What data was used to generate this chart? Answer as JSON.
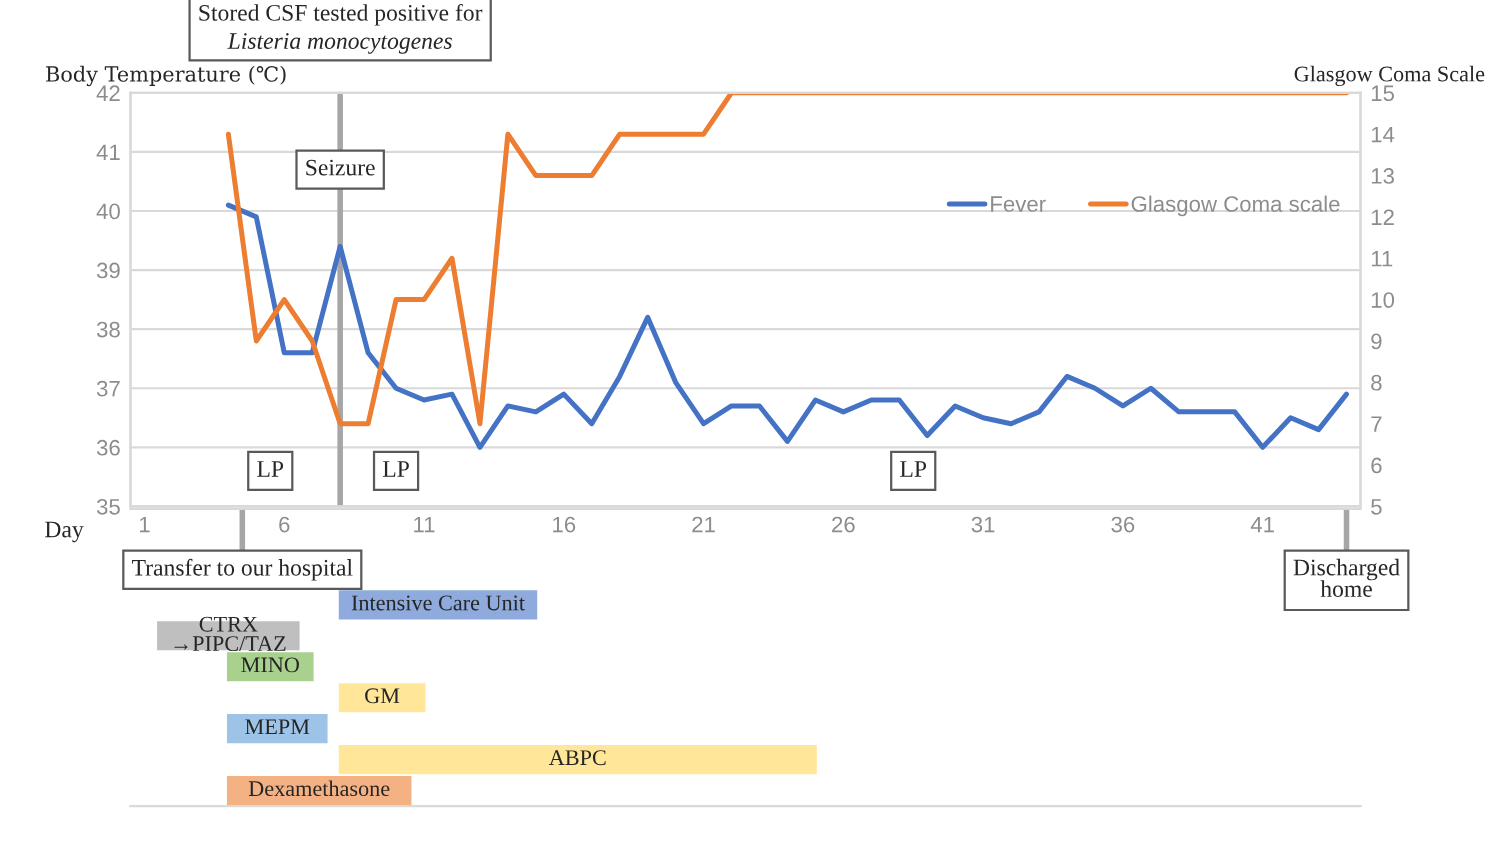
{
  "chart_data": [
    {
      "type": "line",
      "xlabel": "Day",
      "ylabel": "Body Temperature (℃)",
      "y2label": "Glasgow Coma Scale",
      "x": [
        4,
        5,
        6,
        7,
        8,
        9,
        10,
        11,
        12,
        13,
        14,
        15,
        16,
        17,
        18,
        19,
        20,
        21,
        22,
        23,
        24,
        25,
        26,
        27,
        28,
        29,
        30,
        31,
        32,
        33,
        34,
        35,
        36,
        37,
        38,
        39,
        40,
        41,
        42,
        43,
        44
      ],
      "series": [
        {
          "name": "Fever",
          "color": "#4472c4",
          "values": [
            40.1,
            39.9,
            37.6,
            37.6,
            39.4,
            37.6,
            37.0,
            36.8,
            36.9,
            36.0,
            36.7,
            36.6,
            36.9,
            36.4,
            37.2,
            38.2,
            37.1,
            36.4,
            36.7,
            36.7,
            36.1,
            36.8,
            36.6,
            36.8,
            36.8,
            36.2,
            36.7,
            36.5,
            36.4,
            36.6,
            37.2,
            37.0,
            36.7,
            37.0,
            36.6,
            36.6,
            36.6,
            36.0,
            36.5,
            36.3,
            36.9
          ]
        },
        {
          "name": "Glasgow Coma scale",
          "color": "#ed7d31",
          "axis": "y2",
          "values": [
            14,
            9,
            10,
            9,
            7,
            7,
            10,
            10,
            11,
            7,
            14,
            13,
            13,
            13,
            14,
            14,
            14,
            14,
            15,
            15,
            15,
            15,
            15,
            15,
            15,
            15,
            15,
            15,
            15,
            15,
            15,
            15,
            15,
            15,
            15,
            15,
            15,
            15,
            15,
            15,
            15
          ]
        }
      ],
      "xlim": [
        0.5,
        44.5
      ],
      "xticks": [
        1,
        6,
        11,
        16,
        21,
        26,
        31,
        36,
        41
      ],
      "ylim": [
        35,
        42
      ],
      "yticks": [
        35,
        36,
        37,
        38,
        39,
        40,
        41,
        42
      ],
      "y2lim": [
        5,
        15
      ],
      "y2ticks": [
        5,
        6,
        7,
        8,
        9,
        10,
        11,
        12,
        13,
        14,
        15
      ],
      "grid": "y",
      "legend": "top right",
      "marker": "none",
      "line_style": "solid",
      "ref_lines": [
        {
          "axis": "x",
          "value": 8,
          "label": "Stored CSF tested positive for\nListeria monocytogenes",
          "color": "#a6a6a6"
        }
      ],
      "annotations": [
        {
          "text": "Seizure",
          "x": 8,
          "y": 40.7
        },
        {
          "text": "LP",
          "x": 5.5,
          "y": 35.6
        },
        {
          "text": "LP",
          "x": 10,
          "y": 35.6
        },
        {
          "text": "LP",
          "x": 28.5,
          "y": 35.6
        }
      ]
    },
    {
      "type": "bar",
      "orientation": "horizontal",
      "tick_labels": false,
      "categories": [
        "Intensive Care Unit",
        "CTRX\n→PIPC/TAZ",
        "MINO",
        "GM",
        "MEPM",
        "ABPC",
        "Dexamethasone"
      ],
      "base": [
        8,
        1.5,
        4,
        8,
        4,
        8,
        4
      ],
      "values": [
        7,
        5,
        3,
        3,
        3.5,
        17,
        6.5
      ],
      "colors": [
        "#8faadc",
        "#bfbfbf",
        "#a9d18e",
        "#ffe699",
        "#9dc3e6",
        "#ffe699",
        "#f4b183"
      ],
      "xlim": [
        0.5,
        44.5
      ],
      "xticks": [
        1,
        6,
        11,
        16,
        21,
        26,
        31,
        36,
        41
      ],
      "ref_lines": [
        {
          "axis": "x",
          "value": 4.5,
          "label": "Transfer to our hospital",
          "color": "#a6a6a6"
        },
        {
          "axis": "x",
          "value": 44,
          "label": "Discharged\nhome",
          "color": "#a6a6a6"
        }
      ]
    }
  ]
}
